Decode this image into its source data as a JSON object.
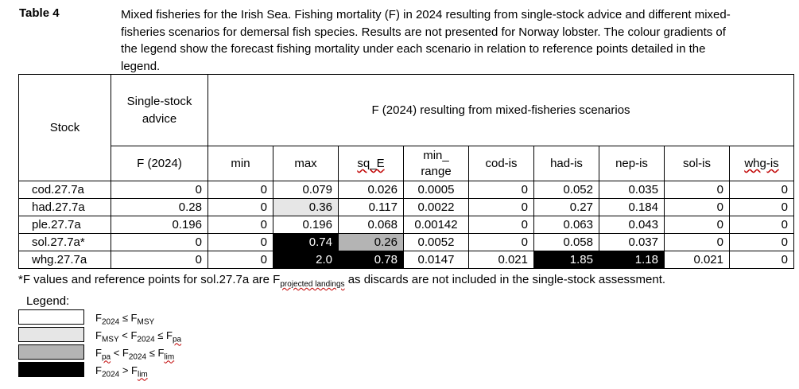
{
  "title": "Table 4",
  "caption": "Mixed fisheries for the Irish Sea. Fishing mortality (F) in 2024 resulting from single-stock advice and different mixed-fisheries scenarios for demersal fish species. Results are not presented for Norway lobster. The colour gradients of the legend show the forecast fishing mortality under each scenario in relation to reference points detailed in the legend.",
  "table": {
    "stock_header": "Stock",
    "single_header": "Single-stock advice",
    "mixed_header": "F (2024) resulting from mixed-fisheries scenarios",
    "single_sub": "F (2024)",
    "scenarios": [
      "min",
      "max",
      "sq_E",
      "min_ range",
      "cod-is",
      "had-is",
      "nep-is",
      "sol-is",
      "whg-is"
    ],
    "rows": [
      {
        "stock": "cod.27.7a",
        "values": [
          "0",
          "0",
          "0.079",
          "0.026",
          "0.0005",
          "0",
          "0.052",
          "0.035",
          "0",
          "0"
        ],
        "shade": [
          0,
          0,
          0,
          0,
          0,
          0,
          0,
          0,
          0,
          0
        ]
      },
      {
        "stock": "had.27.7a",
        "values": [
          "0.28",
          "0",
          "0.36",
          "0.117",
          "0.0022",
          "0",
          "0.27",
          "0.184",
          "0",
          "0"
        ],
        "shade": [
          0,
          0,
          1,
          0,
          0,
          0,
          0,
          0,
          0,
          0
        ]
      },
      {
        "stock": "ple.27.7a",
        "values": [
          "0.196",
          "0",
          "0.196",
          "0.068",
          "0.00142",
          "0",
          "0.063",
          "0.043",
          "0",
          "0"
        ],
        "shade": [
          0,
          0,
          0,
          0,
          0,
          0,
          0,
          0,
          0,
          0
        ]
      },
      {
        "stock": "sol.27.7a*",
        "values": [
          "0",
          "0",
          "0.74",
          "0.26",
          "0.0052",
          "0",
          "0.058",
          "0.037",
          "0",
          "0"
        ],
        "shade": [
          0,
          0,
          3,
          2,
          0,
          0,
          0,
          0,
          0,
          0
        ]
      },
      {
        "stock": "whg.27.7a",
        "values": [
          "0",
          "0",
          "2.0",
          "0.78",
          "0.0147",
          "0.021",
          "1.85",
          "1.18",
          "0.021",
          "0"
        ],
        "shade": [
          0,
          0,
          3,
          3,
          0,
          0,
          3,
          3,
          0,
          0
        ]
      }
    ]
  },
  "footnote": {
    "pre": "*F values and reference points for sol.27.7a are F",
    "sub": "projected landings",
    "post": " as discards are not included in the single-stock assessment."
  },
  "legend": {
    "title": "Legend:",
    "items": [
      {
        "color": "#ffffff",
        "parts": [
          [
            "F",
            ""
          ],
          [
            "2024",
            "sub"
          ],
          [
            " ≤ F",
            ""
          ],
          [
            "MSY",
            "sub"
          ]
        ]
      },
      {
        "color": "#e6e6e6",
        "parts": [
          [
            "F",
            ""
          ],
          [
            "MSY",
            "sub"
          ],
          [
            " < F",
            ""
          ],
          [
            "2024",
            "sub"
          ],
          [
            " ≤ F",
            ""
          ],
          [
            "pa",
            "subw"
          ]
        ]
      },
      {
        "color": "#b4b4b4",
        "parts": [
          [
            "F",
            ""
          ],
          [
            "pa",
            "subw"
          ],
          [
            " < F",
            ""
          ],
          [
            "2024",
            "sub"
          ],
          [
            " ≤ F",
            ""
          ],
          [
            "lim",
            "subw"
          ]
        ]
      },
      {
        "color": "#000000",
        "parts": [
          [
            "F",
            ""
          ],
          [
            "2024",
            "sub"
          ],
          [
            " > F",
            ""
          ],
          [
            "lim",
            "subw"
          ]
        ]
      }
    ]
  }
}
